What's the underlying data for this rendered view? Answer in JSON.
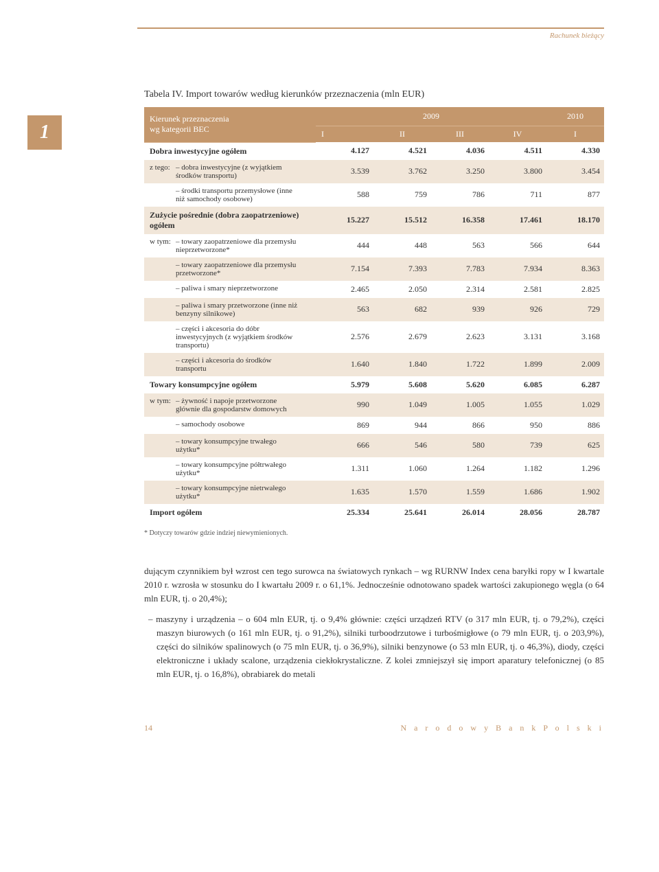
{
  "header": {
    "running": "Rachunek bieżący"
  },
  "section_number": "1",
  "table": {
    "title": "Tabela IV. Import towarów według kierunków przeznaczenia (mln EUR)",
    "head_left_line1": "Kierunek przeznaczenia",
    "head_left_line2": "wg kategorii BEC",
    "year_2009": "2009",
    "year_2010": "2010",
    "cols": [
      "I",
      "II",
      "III",
      "IV",
      "I"
    ],
    "rows": [
      {
        "type": "section",
        "label": "Dobra inwestycyjne ogółem",
        "vals": [
          "4.127",
          "4.521",
          "4.036",
          "4.511",
          "4.330"
        ]
      },
      {
        "type": "sub",
        "prefix": "z tego:",
        "label": "– dobra inwestycyjne (z wyjątkiem środków transportu)",
        "vals": [
          "3.539",
          "3.762",
          "3.250",
          "3.800",
          "3.454"
        ],
        "alt": true
      },
      {
        "type": "sub",
        "prefix": "",
        "label": "– środki transportu przemysłowe (inne niż samochody osobowe)",
        "vals": [
          "588",
          "759",
          "786",
          "711",
          "877"
        ]
      },
      {
        "type": "section",
        "label": "Zużycie pośrednie (dobra zaopatrzeniowe) ogółem",
        "vals": [
          "15.227",
          "15.512",
          "16.358",
          "17.461",
          "18.170"
        ],
        "alt": true
      },
      {
        "type": "sub",
        "prefix": "w tym:",
        "label": "– towary zaopatrzeniowe dla przemysłu nieprzetworzone*",
        "vals": [
          "444",
          "448",
          "563",
          "566",
          "644"
        ]
      },
      {
        "type": "sub",
        "prefix": "",
        "label": "– towary zaopatrzeniowe dla przemysłu przetworzone*",
        "vals": [
          "7.154",
          "7.393",
          "7.783",
          "7.934",
          "8.363"
        ],
        "alt": true
      },
      {
        "type": "sub",
        "prefix": "",
        "label": "– paliwa i smary nieprzetworzone",
        "vals": [
          "2.465",
          "2.050",
          "2.314",
          "2.581",
          "2.825"
        ]
      },
      {
        "type": "sub",
        "prefix": "",
        "label": "– paliwa i smary przetworzone (inne niż benzyny silnikowe)",
        "vals": [
          "563",
          "682",
          "939",
          "926",
          "729"
        ],
        "alt": true
      },
      {
        "type": "sub",
        "prefix": "",
        "label": "– części i akcesoria do dóbr inwestycyjnych (z wyjątkiem środków transportu)",
        "vals": [
          "2.576",
          "2.679",
          "2.623",
          "3.131",
          "3.168"
        ]
      },
      {
        "type": "sub",
        "prefix": "",
        "label": "– części i akcesoria do środków transportu",
        "vals": [
          "1.640",
          "1.840",
          "1.722",
          "1.899",
          "2.009"
        ],
        "alt": true
      },
      {
        "type": "section",
        "label": "Towary konsumpcyjne ogółem",
        "vals": [
          "5.979",
          "5.608",
          "5.620",
          "6.085",
          "6.287"
        ]
      },
      {
        "type": "sub",
        "prefix": "w tym:",
        "label": "– żywność i napoje przetworzone głównie dla gospodarstw domowych",
        "vals": [
          "990",
          "1.049",
          "1.005",
          "1.055",
          "1.029"
        ],
        "alt": true
      },
      {
        "type": "sub",
        "prefix": "",
        "label": "– samochody osobowe",
        "vals": [
          "869",
          "944",
          "866",
          "950",
          "886"
        ]
      },
      {
        "type": "sub",
        "prefix": "",
        "label": "– towary konsumpcyjne trwałego użytku*",
        "vals": [
          "666",
          "546",
          "580",
          "739",
          "625"
        ],
        "alt": true
      },
      {
        "type": "sub",
        "prefix": "",
        "label": "– towary konsumpcyjne półtrwałego użytku*",
        "vals": [
          "1.311",
          "1.060",
          "1.264",
          "1.182",
          "1.296"
        ]
      },
      {
        "type": "sub",
        "prefix": "",
        "label": "– towary konsumpcyjne nietrwałego użytku*",
        "vals": [
          "1.635",
          "1.570",
          "1.559",
          "1.686",
          "1.902"
        ],
        "alt": true
      },
      {
        "type": "section",
        "label": "Import ogółem",
        "vals": [
          "25.334",
          "25.641",
          "26.014",
          "28.056",
          "28.787"
        ]
      }
    ],
    "footnote": "* Dotyczy towarów gdzie indziej niewymienionych."
  },
  "body": {
    "p1": "dującym czynnikiem był wzrost cen tego surowca na światowych rynkach – wg RURNW Index cena baryłki ropy w I kwartale 2010 r. wzrosła w stosunku do I kwartału 2009 r. o 61,1%. Jednocześnie odnotowano spadek wartości zakupionego węgla (o 64 mln EUR, tj. o 20,4%);",
    "p2": "– maszyny i urządzenia – o 604 mln EUR, tj. o 9,4% głównie: części urządzeń RTV (o 317 mln EUR, tj. o 79,2%), części maszyn biurowych (o 161 mln EUR, tj. o 91,2%), silniki turboodrzutowe i turbośmigłowe (o 79 mln EUR, tj. o 203,9%), części do silników spalinowych (o 75 mln EUR, tj. o 36,9%), silniki benzynowe (o 53 mln EUR, tj. o 46,3%), diody, części elektroniczne i układy scalone, urządzenia ciekłokrystaliczne. Z kolei zmniejszył się import aparatury telefonicznej (o 85 mln EUR, tj. o 16,8%), obrabiarek do metali"
  },
  "footer": {
    "page": "14",
    "bank": "N a r o d o w y   B a n k   P o l s k i"
  }
}
